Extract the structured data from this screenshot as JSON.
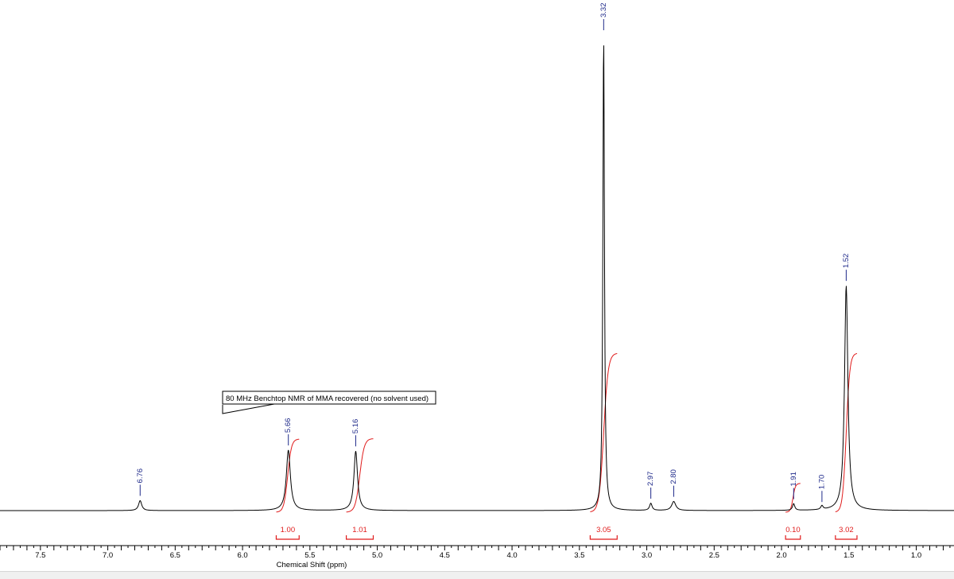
{
  "chart_data": {
    "type": "line",
    "title": "",
    "xlabel": "Chemical Shift (ppm)",
    "ylabel": "",
    "xlim": [
      0.72,
      7.8
    ],
    "x_reversed": true,
    "grid": false,
    "x_ticks": [
      {
        "value": 7.5,
        "label": "7.5"
      },
      {
        "value": 7.0,
        "label": "7.0"
      },
      {
        "value": 6.5,
        "label": "6.5"
      },
      {
        "value": 6.0,
        "label": "6.0"
      },
      {
        "value": 5.5,
        "label": "5.5"
      },
      {
        "value": 5.0,
        "label": "5.0"
      },
      {
        "value": 4.5,
        "label": "4.5"
      },
      {
        "value": 4.0,
        "label": "4.0"
      },
      {
        "value": 3.5,
        "label": "3.5"
      },
      {
        "value": 3.0,
        "label": "3.0"
      },
      {
        "value": 2.5,
        "label": "2.5"
      },
      {
        "value": 2.0,
        "label": "2.0"
      },
      {
        "value": 1.5,
        "label": "1.5"
      },
      {
        "value": 1.0,
        "label": "1.0"
      }
    ],
    "peaks": [
      {
        "label": "6.76",
        "ppm": 6.76,
        "height": 0.021,
        "width": 0.014
      },
      {
        "label": "5.66",
        "ppm": 5.66,
        "height": 0.127,
        "width": 0.018
      },
      {
        "label": "5.16",
        "ppm": 5.16,
        "height": 0.125,
        "width": 0.016
      },
      {
        "label": "3.32",
        "ppm": 3.32,
        "height": 1.0,
        "width": 0.007
      },
      {
        "label": "2.97",
        "ppm": 2.97,
        "height": 0.015,
        "width": 0.011
      },
      {
        "label": "2.80",
        "ppm": 2.8,
        "height": 0.019,
        "width": 0.018
      },
      {
        "label": "1.91",
        "ppm": 1.91,
        "height": 0.014,
        "width": 0.01
      },
      {
        "label": "1.70",
        "ppm": 1.7,
        "height": 0.008,
        "width": 0.01
      },
      {
        "label": "1.52",
        "ppm": 1.52,
        "height": 0.473,
        "width": 0.015
      }
    ],
    "integrals": [
      {
        "label": "1.00",
        "from": 5.75,
        "to": 5.58,
        "value": 1.0
      },
      {
        "label": "1.01",
        "from": 5.23,
        "to": 5.03,
        "value": 1.01
      },
      {
        "label": "3.05",
        "from": 3.42,
        "to": 3.22,
        "value": 3.05
      },
      {
        "label": "0.10",
        "from": 1.97,
        "to": 1.86,
        "value": 0.1
      },
      {
        "label": "3.02",
        "from": 1.6,
        "to": 1.44,
        "value": 3.02
      }
    ],
    "annotations": [
      {
        "text": "80 MHz Benchtop NMR of MMA recovered (no solvent used)"
      }
    ]
  }
}
